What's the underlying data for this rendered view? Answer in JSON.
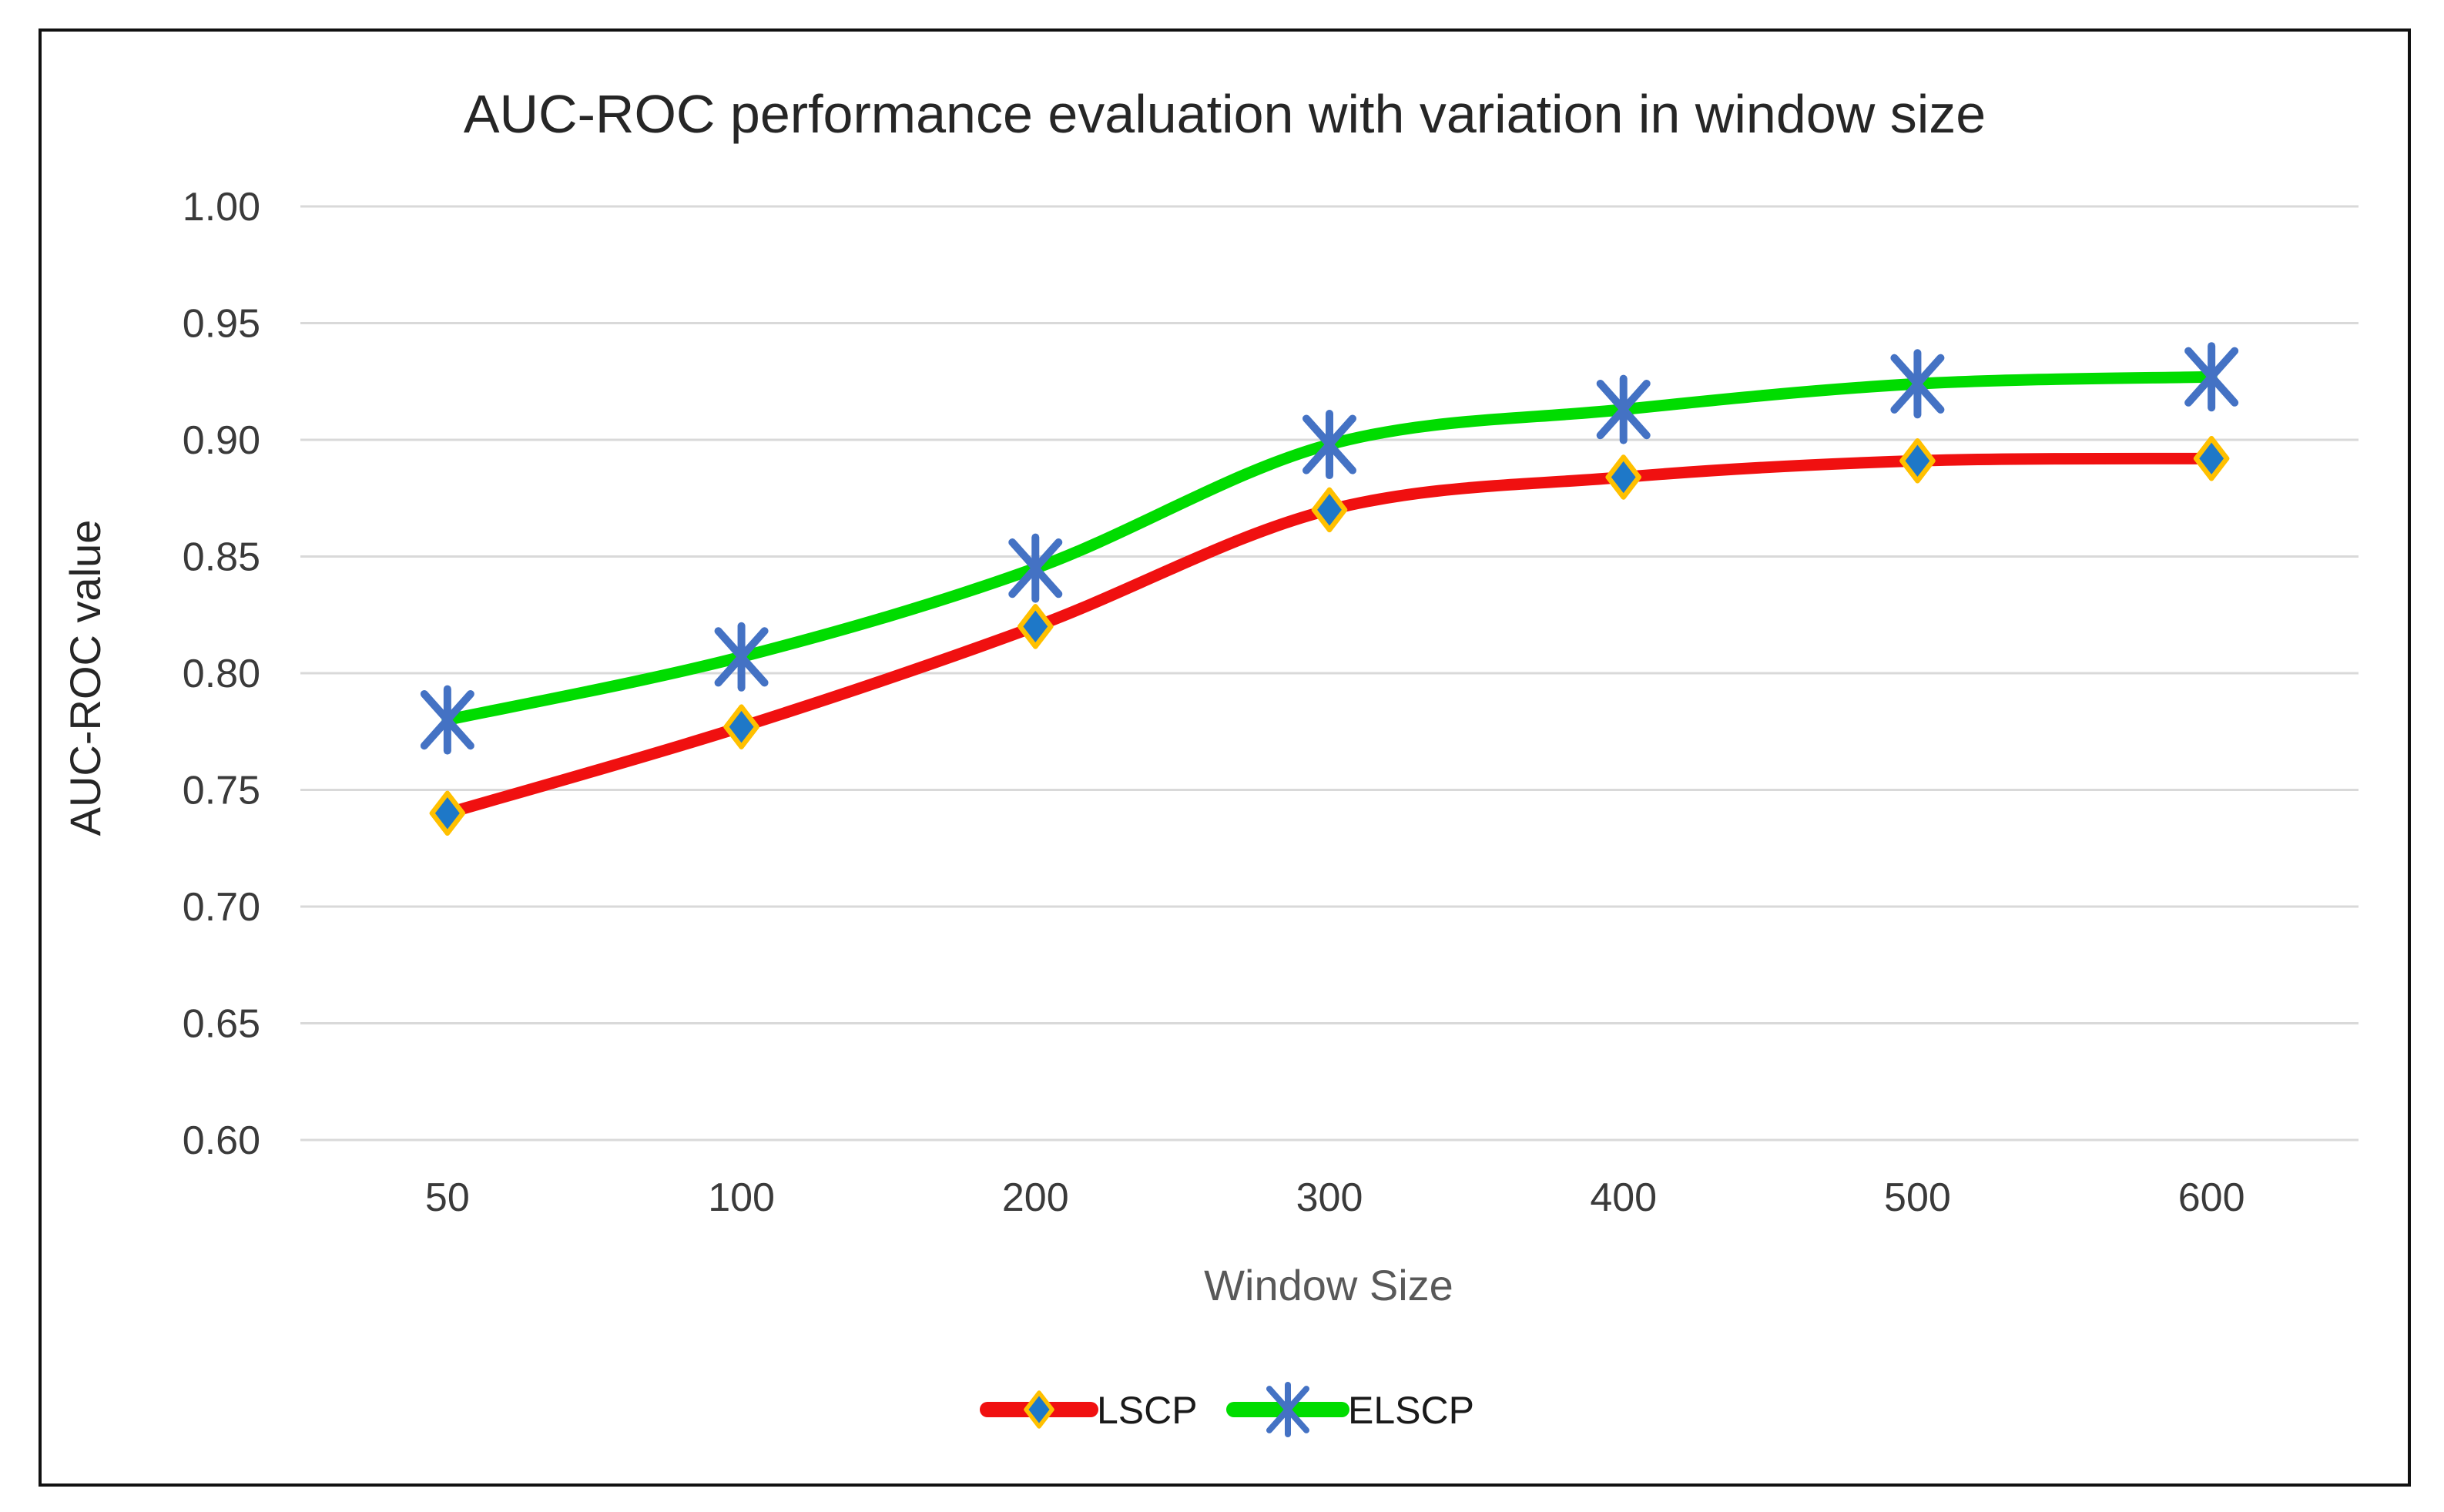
{
  "figure": {
    "background": "#FFFFFF",
    "frame_color": "#111111",
    "title_color": "#262626",
    "tick_label_color": "#3A3A3A",
    "x_axis_title_color": "#595959",
    "y_axis_title_color": "#262626",
    "legend_text_color": "#1A1A1A"
  },
  "chart_data": {
    "type": "line",
    "title": "AUC-ROC performance evaluation with variation in window size",
    "xlabel": "Window Size",
    "ylabel": "AUC-ROC value",
    "categories": [
      "50",
      "100",
      "200",
      "300",
      "400",
      "500",
      "600"
    ],
    "series": [
      {
        "name": "LSCP",
        "line_color": "#F01010",
        "marker": "diamond",
        "marker_fill": "#1E78C8",
        "marker_outline": "#FFC000",
        "values": [
          0.74,
          0.777,
          0.82,
          0.87,
          0.884,
          0.891,
          0.892
        ]
      },
      {
        "name": "ELSCP",
        "line_color": "#00DC00",
        "marker": "asterisk",
        "marker_color": "#4472C4",
        "values": [
          0.78,
          0.807,
          0.845,
          0.898,
          0.913,
          0.924,
          0.927
        ]
      }
    ],
    "ylim": [
      0.6,
      1.0
    ],
    "ytick_step": 0.05,
    "ytick_labels": [
      "1.00",
      "0.95",
      "0.90",
      "0.85",
      "0.80",
      "0.75",
      "0.70",
      "0.65",
      "0.60"
    ],
    "grid": true,
    "gridline_color": "#D9D9D9",
    "legend_position": "bottom-center",
    "smoothed_lines": true
  }
}
